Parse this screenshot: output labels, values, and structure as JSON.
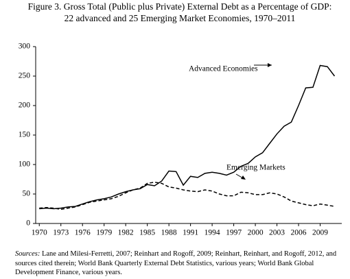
{
  "chart_data": {
    "type": "line",
    "title": "Figure 3. Gross Total (Public plus Private) External Debt as a Percentage of GDP:",
    "subtitle": "22 advanced and 25 Emerging Market Economies, 1970–2011",
    "x": [
      1970,
      1971,
      1972,
      1973,
      1974,
      1975,
      1976,
      1977,
      1978,
      1979,
      1980,
      1981,
      1982,
      1983,
      1984,
      1985,
      1986,
      1987,
      1988,
      1989,
      1990,
      1991,
      1992,
      1993,
      1994,
      1995,
      1996,
      1997,
      1998,
      1999,
      2000,
      2001,
      2002,
      2003,
      2004,
      2005,
      2006,
      2007,
      2008,
      2009,
      2010,
      2011
    ],
    "series": [
      {
        "name": "Advanced Economies",
        "color": "#000000",
        "dash": false,
        "values": [
          25,
          26,
          25,
          26,
          28,
          29,
          33,
          37,
          40,
          42,
          45,
          50,
          54,
          57,
          59,
          66,
          64,
          72,
          89,
          88,
          65,
          80,
          78,
          85,
          87,
          85,
          82,
          87,
          97,
          102,
          113,
          120,
          136,
          152,
          165,
          172,
          200,
          230,
          231,
          268,
          266,
          250
        ]
      },
      {
        "name": "Emerging Markets",
        "color": "#000000",
        "dash": true,
        "values": [
          26,
          27,
          26,
          24,
          26,
          28,
          32,
          36,
          38,
          40,
          42,
          46,
          52,
          57,
          60,
          68,
          70,
          68,
          62,
          60,
          57,
          55,
          54,
          57,
          55,
          50,
          47,
          47,
          53,
          52,
          49,
          49,
          52,
          50,
          45,
          38,
          35,
          32,
          30,
          33,
          31,
          29
        ]
      }
    ],
    "xlim": [
      1969.5,
      2012
    ],
    "xticks": [
      1970,
      1973,
      1976,
      1979,
      1982,
      1985,
      1988,
      1991,
      1994,
      1997,
      2000,
      2003,
      2006,
      2009
    ],
    "ylim": [
      0,
      300
    ],
    "yticks": [
      0,
      50,
      100,
      150,
      200,
      250,
      300
    ],
    "grid": false
  },
  "sources": {
    "label": "Sources:",
    "text": "Lane and Milesi-Ferretti, 2007; Reinhart and Rogoff, 2009; Reinhart, Reinhart, and Rogoff, 2012, and sources cited therein; World Bank Quarterly External Debt Statistics, various years; World Bank Global Development Finance, various years."
  }
}
